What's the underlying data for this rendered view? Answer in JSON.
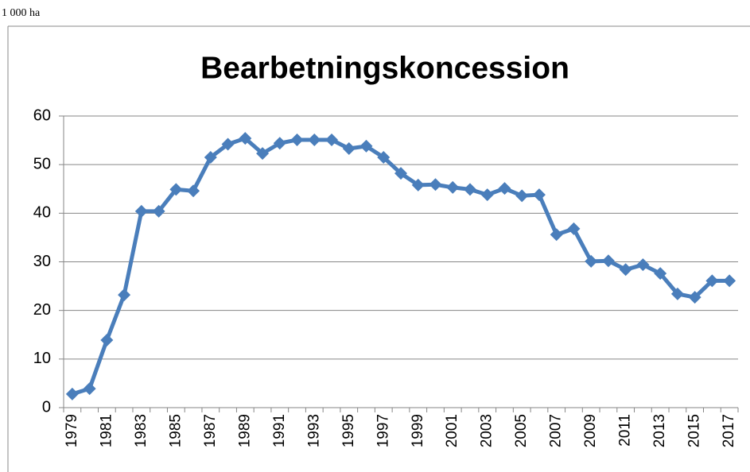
{
  "chart_data": {
    "type": "line",
    "title": "Bearbetningskoncession",
    "ylabel": "1 000 ha",
    "categories": [
      "1979",
      null,
      "1981",
      null,
      "1983",
      null,
      "1985",
      null,
      "1987",
      null,
      "1989",
      null,
      "1991",
      null,
      "1993",
      null,
      "1995",
      null,
      "1997",
      null,
      "1999",
      null,
      "2001",
      null,
      "2003",
      null,
      "2005",
      null,
      "2007",
      null,
      "2009",
      null,
      "2011",
      null,
      "2013",
      null,
      "2015",
      null,
      "2017"
    ],
    "series": [
      {
        "name": "Bearbetningskoncession",
        "color": "#4a7ebb",
        "values": [
          2.8,
          3.9,
          13.9,
          23.2,
          40.4,
          40.4,
          44.9,
          44.6,
          51.5,
          54.2,
          55.4,
          52.3,
          54.4,
          55.1,
          55.1,
          55.1,
          53.3,
          53.8,
          51.5,
          48.2,
          45.8,
          45.9,
          45.3,
          44.9,
          43.8,
          45.1,
          43.6,
          43.8,
          35.6,
          36.8,
          30.1,
          30.2,
          28.4,
          29.4,
          27.6,
          23.4,
          22.7,
          26.1,
          26.1
        ]
      }
    ],
    "ylim": [
      0,
      60
    ],
    "yticks": [
      0,
      10,
      20,
      30,
      40,
      50,
      60
    ],
    "grid": true
  }
}
